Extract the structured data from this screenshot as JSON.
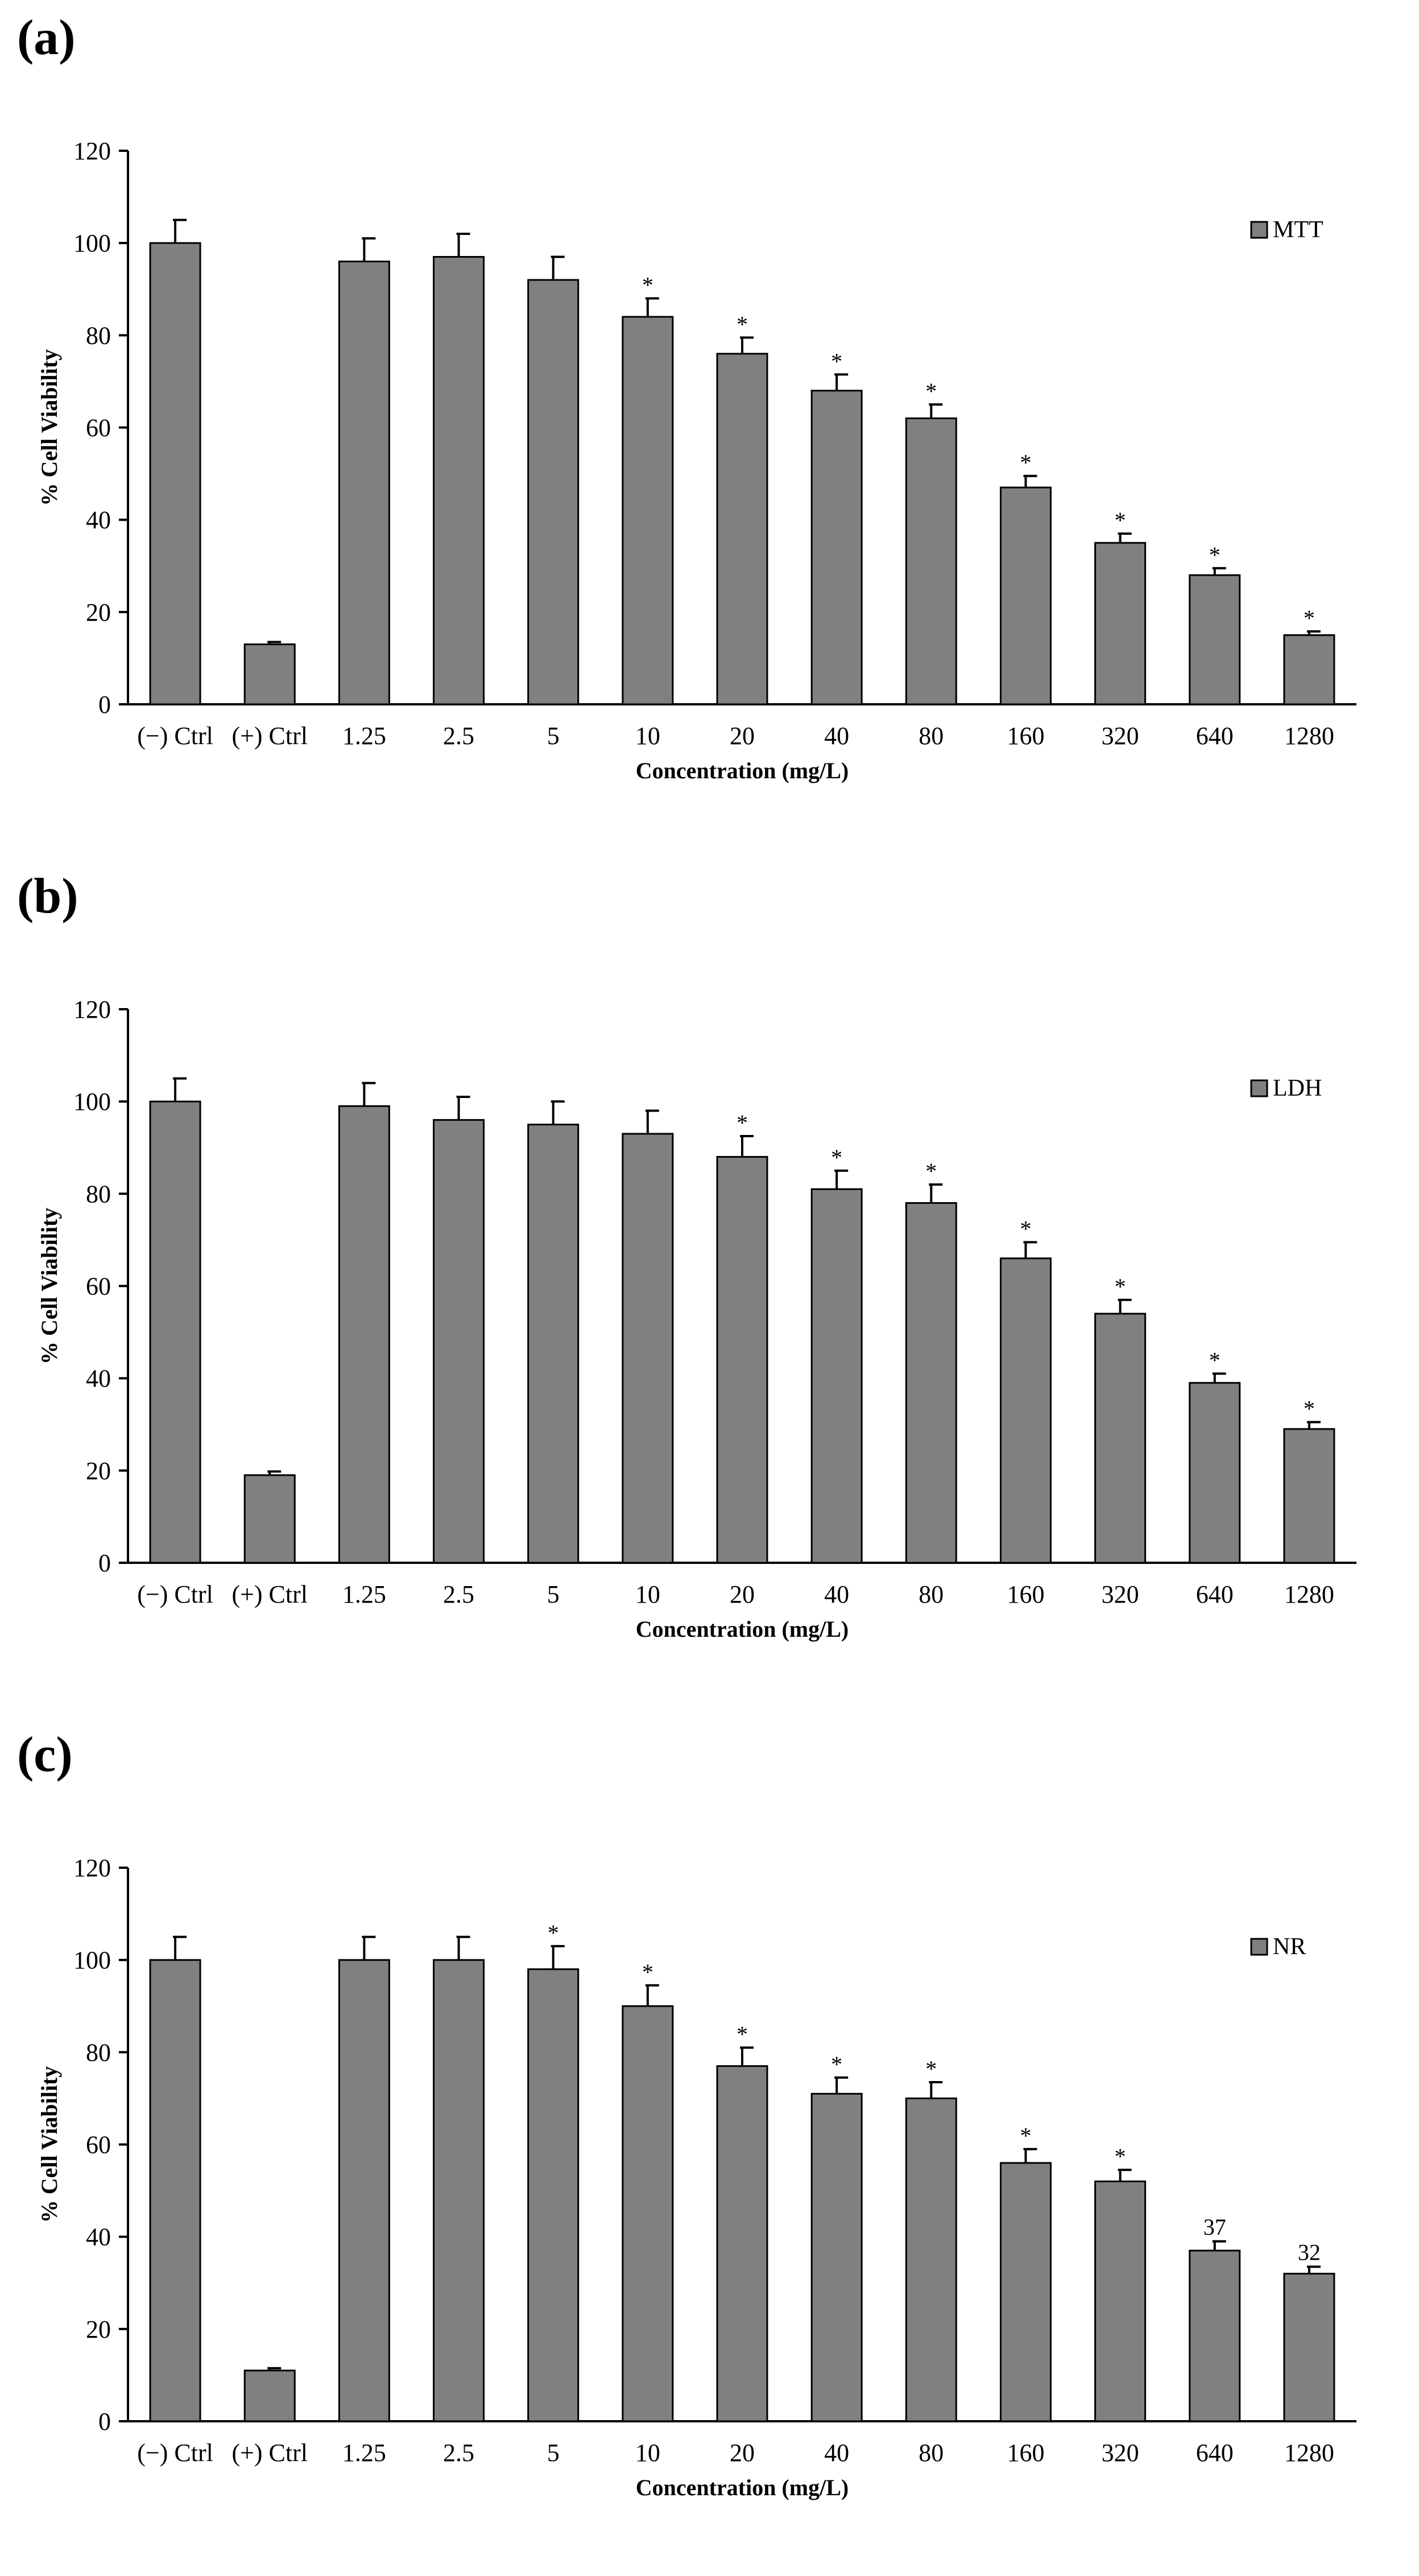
{
  "chart_data": [
    {
      "panel_label": "(a)",
      "type": "bar",
      "xlabel": "Concentration (mg/L)",
      "ylabel": "% Cell Viability",
      "ylim": [
        0,
        120
      ],
      "yticks": [
        "0",
        "20",
        "40",
        "60",
        "80",
        "100",
        "120"
      ],
      "categories": [
        "(−) Ctrl",
        "(+) Ctrl",
        "1.25",
        "2.5",
        "5",
        "10",
        "20",
        "40",
        "80",
        "160",
        "320",
        "640",
        "1280"
      ],
      "series": [
        {
          "name": "MTT",
          "values": [
            100,
            13,
            96,
            97,
            92,
            84,
            76,
            68,
            62,
            47,
            35,
            28,
            15
          ],
          "errors": [
            5,
            0.5,
            5,
            5,
            5,
            4,
            3.5,
            3.5,
            3,
            2.5,
            2,
            1.5,
            0.8
          ],
          "significance": [
            "",
            "",
            "",
            "",
            "",
            "*",
            "*",
            "*",
            "*",
            "*",
            "*",
            "*",
            "*"
          ],
          "value_labels": [
            "",
            "",
            "",
            "",
            "",
            "",
            "",
            "",
            "",
            "",
            "",
            "",
            ""
          ]
        }
      ]
    },
    {
      "panel_label": "(b)",
      "type": "bar",
      "xlabel": "Concentration (mg/L)",
      "ylabel": "% Cell Viability",
      "ylim": [
        0,
        120
      ],
      "yticks": [
        "0",
        "20",
        "40",
        "60",
        "80",
        "100",
        "120"
      ],
      "categories": [
        "(−) Ctrl",
        "(+) Ctrl",
        "1.25",
        "2.5",
        "5",
        "10",
        "20",
        "40",
        "80",
        "160",
        "320",
        "640",
        "1280"
      ],
      "series": [
        {
          "name": "LDH",
          "values": [
            100,
            19,
            99,
            96,
            95,
            93,
            88,
            81,
            78,
            66,
            54,
            39,
            29
          ],
          "errors": [
            5,
            0.8,
            5,
            5,
            5,
            5,
            4.5,
            4,
            4,
            3.5,
            3,
            2,
            1.5
          ],
          "significance": [
            "",
            "",
            "",
            "",
            "",
            "",
            "*",
            "*",
            "*",
            "*",
            "*",
            "*",
            "*"
          ],
          "value_labels": [
            "",
            "",
            "",
            "",
            "",
            "",
            "",
            "",
            "",
            "",
            "",
            "",
            ""
          ]
        }
      ]
    },
    {
      "panel_label": "(c)",
      "type": "bar",
      "xlabel": "Concentration (mg/L)",
      "ylabel": "% Cell Viability",
      "ylim": [
        0,
        120
      ],
      "yticks": [
        "0",
        "20",
        "40",
        "60",
        "80",
        "100",
        "120"
      ],
      "categories": [
        "(−) Ctrl",
        "(+) Ctrl",
        "1.25",
        "2.5",
        "5",
        "10",
        "20",
        "40",
        "80",
        "160",
        "320",
        "640",
        "1280"
      ],
      "series": [
        {
          "name": "NR",
          "values": [
            100,
            11,
            100,
            100,
            98,
            90,
            77,
            71,
            70,
            56,
            52,
            37,
            32
          ],
          "errors": [
            5,
            0.5,
            5,
            5,
            5,
            4.5,
            4,
            3.5,
            3.5,
            3,
            2.5,
            2,
            1.5
          ],
          "significance": [
            "",
            "",
            "",
            "",
            "*",
            "*",
            "*",
            "*",
            "*",
            "*",
            "*",
            "",
            ""
          ],
          "value_labels": [
            "",
            "",
            "",
            "",
            "",
            "",
            "",
            "",
            "",
            "",
            "",
            "37",
            "32"
          ]
        }
      ]
    }
  ],
  "colors": {
    "bar_fill": "#808080",
    "bar_stroke": "#000000",
    "axis": "#000000",
    "background": "#ffffff"
  }
}
